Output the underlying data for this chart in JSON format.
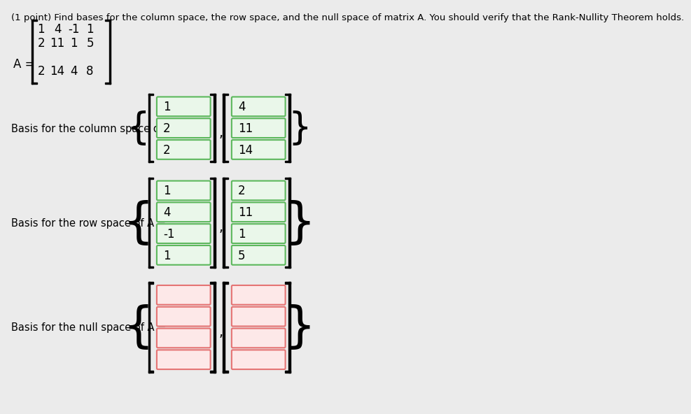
{
  "bg_color": "#ebebeb",
  "title_text": "(1 point) Find bases for the column space, the row space, and the null space of matrix A. You should verify that the Rank-Nullity Theorem holds.",
  "matrix_label": "A =",
  "matrix_rows": [
    [
      "1",
      "4",
      "-1",
      "1"
    ],
    [
      "2",
      "11",
      "1",
      "5"
    ],
    [
      "",
      "",
      "",
      ""
    ],
    [
      "2",
      "14",
      "4",
      "8"
    ]
  ],
  "col_space_label": "Basis for the column space of A =",
  "col_space_vec1": [
    "1",
    "2",
    "2"
  ],
  "col_space_vec2": [
    "4",
    "11",
    "14"
  ],
  "row_space_label": "Basis for the row space of A =",
  "row_space_vec1": [
    "1",
    "4",
    "-1",
    "1"
  ],
  "row_space_vec2": [
    "2",
    "11",
    "1",
    "5"
  ],
  "null_space_label": "Basis for the null space of A =",
  "null_space_rows": 4,
  "null_space_vecs": 2,
  "green_border": "#5cb85c",
  "green_bg": "#eaf7ea",
  "red_border": "#e57373",
  "red_bg": "#fde8e8",
  "white_fill": "#ffffff",
  "text_color": "#000000",
  "font_size_title": 9.5,
  "font_size_label": 10.5,
  "font_size_value": 11
}
